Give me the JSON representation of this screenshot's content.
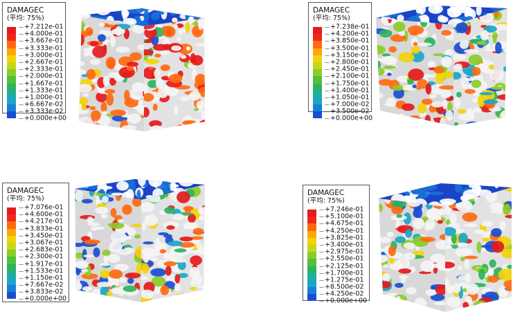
{
  "legend_title": "DAMAGEC",
  "legend_subtitle": "(平均: 75%)",
  "colors": [
    "#e41a1c",
    "#f0271c",
    "#ff6a10",
    "#ffa60a",
    "#f2d20a",
    "#c2d81a",
    "#8bcc2a",
    "#52c03a",
    "#2db35d",
    "#1fb09b",
    "#1aa6c9",
    "#1a7fd6",
    "#1a4ed0",
    "#1733b8"
  ],
  "panels": [
    {
      "name": "top-left",
      "labels": [
        "+7.212e-01",
        "+4.000e-01",
        "+3.667e-01",
        "+3.333e-01",
        "+3.000e-01",
        "+2.667e-01",
        "+2.333e-01",
        "+2.000e-01",
        "+1.667e-01",
        "+1.333e-01",
        "+1.000e-01",
        "+6.667e-02",
        "+3.333e-02",
        "+0.000e+00"
      ]
    },
    {
      "name": "top-right",
      "labels": [
        "+7.238e-01",
        "+4.200e-01",
        "+3.850e-01",
        "+3.500e-01",
        "+3.150e-01",
        "+2.800e-01",
        "+2.450e-01",
        "+2.100e-01",
        "+1.750e-01",
        "+1.400e-01",
        "+1.050e-01",
        "+7.000e-02",
        "+3.500e-02",
        "+0.000e+00"
      ]
    },
    {
      "name": "bottom-left",
      "labels": [
        "+7.076e-01",
        "+4.600e-01",
        "+4.217e-01",
        "+3.833e-01",
        "+3.450e-01",
        "+3.067e-01",
        "+2.683e-01",
        "+2.300e-01",
        "+1.917e-01",
        "+1.533e-01",
        "+1.150e-01",
        "+7.667e-02",
        "+3.833e-02",
        "+0.000e+00"
      ]
    },
    {
      "name": "bottom-right",
      "labels": [
        "+7.246e-01",
        "+5.100e-01",
        "+4.675e-01",
        "+4.250e-01",
        "+3.825e-01",
        "+3.400e-01",
        "+2.975e-01",
        "+2.550e-01",
        "+2.125e-01",
        "+1.700e-01",
        "+1.275e-01",
        "+8.500e-02",
        "+4.250e-02",
        "+0.000e+00"
      ]
    }
  ]
}
